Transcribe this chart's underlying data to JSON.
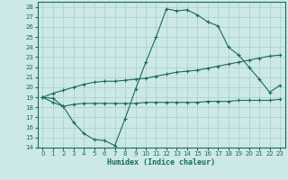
{
  "xlabel": "Humidex (Indice chaleur)",
  "bg_color": "#cce8e8",
  "grid_color": "#aacccc",
  "line_color": "#1a6b5a",
  "xlim": [
    -0.5,
    23.5
  ],
  "ylim": [
    14,
    28.5
  ],
  "xticks": [
    0,
    1,
    2,
    3,
    4,
    5,
    6,
    7,
    8,
    9,
    10,
    11,
    12,
    13,
    14,
    15,
    16,
    17,
    18,
    19,
    20,
    21,
    22,
    23
  ],
  "yticks": [
    14,
    15,
    16,
    17,
    18,
    19,
    20,
    21,
    22,
    23,
    24,
    25,
    26,
    27,
    28
  ],
  "main_x": [
    0,
    1,
    2,
    3,
    4,
    5,
    6,
    7,
    8,
    9,
    10,
    11,
    12,
    13,
    14,
    15,
    16,
    17,
    18,
    19,
    20,
    21,
    22,
    23
  ],
  "main_y": [
    19.0,
    18.9,
    18.1,
    16.5,
    15.4,
    14.8,
    14.7,
    14.2,
    16.9,
    19.8,
    22.5,
    25.0,
    27.8,
    27.6,
    27.7,
    27.2,
    26.5,
    26.1,
    24.0,
    23.2,
    22.0,
    20.8,
    19.5,
    20.2
  ],
  "min_x": [
    0,
    1,
    2,
    3,
    4,
    5,
    6,
    7,
    8,
    9,
    10,
    11,
    12,
    13,
    14,
    15,
    16,
    17,
    18,
    19,
    20,
    21,
    22,
    23
  ],
  "min_y": [
    19.0,
    18.5,
    18.1,
    18.3,
    18.4,
    18.4,
    18.4,
    18.4,
    18.4,
    18.4,
    18.5,
    18.5,
    18.5,
    18.5,
    18.5,
    18.5,
    18.6,
    18.6,
    18.6,
    18.7,
    18.7,
    18.7,
    18.7,
    18.8
  ],
  "max_x": [
    0,
    1,
    2,
    3,
    4,
    5,
    6,
    7,
    8,
    9,
    10,
    11,
    12,
    13,
    14,
    15,
    16,
    17,
    18,
    19,
    20,
    21,
    22,
    23
  ],
  "max_y": [
    19.0,
    19.4,
    19.7,
    20.0,
    20.3,
    20.5,
    20.6,
    20.6,
    20.7,
    20.8,
    20.9,
    21.1,
    21.3,
    21.5,
    21.6,
    21.7,
    21.9,
    22.1,
    22.3,
    22.5,
    22.7,
    22.9,
    23.1,
    23.2
  ]
}
